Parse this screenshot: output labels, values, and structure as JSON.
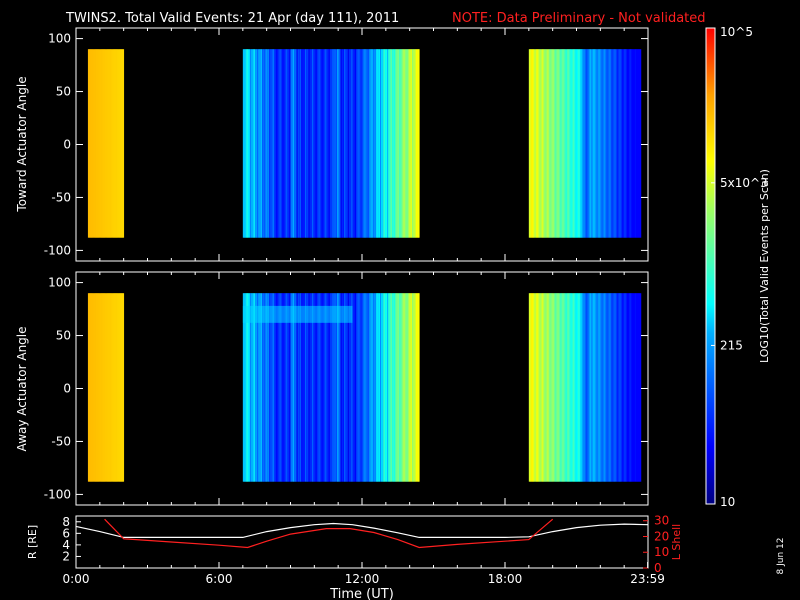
{
  "header": {
    "title": "TWINS2. Total Valid Events: 21 Apr (day 111), 2011",
    "note": "NOTE: Data Preliminary - Not validated"
  },
  "colors": {
    "background": "#000000",
    "note_red": "#ff2020",
    "r_line": "#ffffff",
    "lshell_line": "#ff2020"
  },
  "chart_data": [
    {
      "type": "heatmap",
      "ylabel": "Toward Actuator Angle",
      "xlim": [
        0,
        24
      ],
      "ylim": [
        -110,
        110
      ],
      "yticks": [
        "100",
        "50",
        "0",
        "-50",
        "-100"
      ],
      "coverage_hours": [
        [
          0.5,
          2.0
        ],
        [
          7.0,
          14.4
        ],
        [
          19.0,
          23.7
        ]
      ],
      "angle_range": [
        -88,
        90
      ],
      "colorscale": "log",
      "color_range": [
        10,
        100000
      ]
    },
    {
      "type": "heatmap",
      "ylabel": "Away Actuator Angle",
      "xlim": [
        0,
        24
      ],
      "ylim": [
        -110,
        110
      ],
      "yticks": [
        "100",
        "50",
        "0",
        "-50",
        "-100"
      ],
      "coverage_hours": [
        [
          0.5,
          2.0
        ],
        [
          7.0,
          14.4
        ],
        [
          19.0,
          23.7
        ]
      ],
      "angle_range": [
        -88,
        90
      ],
      "colorscale": "log",
      "color_range": [
        10,
        100000
      ]
    },
    {
      "type": "line",
      "ylabel": "R [RE]",
      "y2label": "L Shell",
      "xlabel": "Time (UT)",
      "xticks": [
        "0:00",
        "6:00",
        "12:00",
        "18:00",
        "23:59"
      ],
      "yticks_left": [
        "8",
        "6",
        "4",
        "2"
      ],
      "yticks_right": [
        "30",
        "20",
        "10",
        "0"
      ],
      "ylim": [
        0,
        9
      ],
      "y2lim": [
        0,
        33
      ],
      "series": [
        {
          "label": "R",
          "x": [
            0,
            1,
            2,
            3,
            5,
            7,
            8,
            9,
            10,
            10.8,
            11.6,
            12.5,
            13.5,
            14.4,
            16,
            18,
            19,
            20,
            21,
            22,
            23,
            23.99
          ],
          "y": [
            7.2,
            6.3,
            5.3,
            5.3,
            5.3,
            5.3,
            6.3,
            7.0,
            7.5,
            7.7,
            7.5,
            6.9,
            6.1,
            5.3,
            5.3,
            5.3,
            5.4,
            6.3,
            7.0,
            7.4,
            7.6,
            7.5
          ]
        },
        {
          "label": "L Shell",
          "x": [
            1.2,
            2.0,
            4,
            6,
            7.2,
            8,
            9,
            10.5,
            11.5,
            12.5,
            13.5,
            14.4,
            16,
            18,
            19.0,
            20.0
          ],
          "y": [
            31,
            18.5,
            16.5,
            14.5,
            13,
            17,
            21.5,
            25,
            25,
            22.5,
            18,
            13,
            15,
            17,
            18,
            31
          ]
        }
      ]
    }
  ],
  "colorbar": {
    "ticks": [
      "10",
      "215",
      "5x10^3",
      "10^5"
    ],
    "label": "LOG10(Total Valid Events per Scan)"
  },
  "footer_date": "8 Jun 12"
}
